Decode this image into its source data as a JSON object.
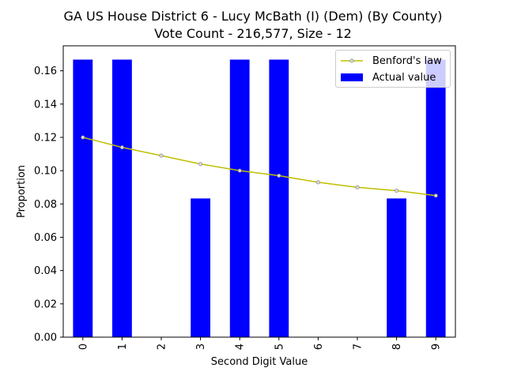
{
  "chart_data": {
    "type": "bar",
    "title": "GA US House District 6 - Lucy McBath (I) (Dem) (By County)",
    "subtitle": "Vote Count - 216,577, Size - 12",
    "xlabel": "Second Digit Value",
    "ylabel": "Proportion",
    "categories": [
      "0",
      "1",
      "2",
      "3",
      "4",
      "5",
      "6",
      "7",
      "8",
      "9"
    ],
    "ylim": [
      0,
      0.175
    ],
    "yticks": [
      0.0,
      0.02,
      0.04,
      0.06,
      0.08,
      0.1,
      0.12,
      0.14,
      0.16
    ],
    "ytick_labels": [
      "0.00",
      "0.02",
      "0.04",
      "0.06",
      "0.08",
      "0.10",
      "0.12",
      "0.14",
      "0.16"
    ],
    "grid": false,
    "legend_position": "top-right",
    "series": [
      {
        "name": "Actual value",
        "kind": "bar",
        "color": "#0000ff",
        "values": [
          0.1667,
          0.1667,
          0.0,
          0.0833,
          0.1667,
          0.1667,
          0.0,
          0.0,
          0.0833,
          0.1667
        ]
      },
      {
        "name": "Benford's law",
        "kind": "line",
        "color": "#bfbf00",
        "marker_color": "#d9d9d9",
        "values": [
          0.12,
          0.114,
          0.109,
          0.104,
          0.1,
          0.097,
          0.093,
          0.09,
          0.088,
          0.085
        ]
      }
    ]
  }
}
